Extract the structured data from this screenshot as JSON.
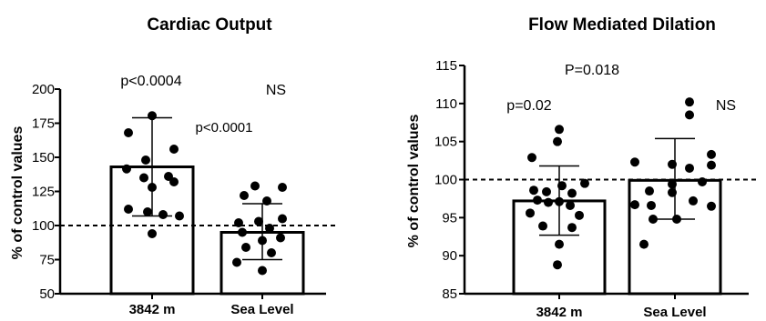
{
  "chart_data": [
    {
      "type": "bar",
      "title": "Cardiac Output",
      "ylabel": "% of control values",
      "xlabel": "",
      "categories": [
        "3842 m",
        "Sea Level"
      ],
      "ylim": [
        50,
        200
      ],
      "yticks": [
        50,
        75,
        100,
        125,
        150,
        175,
        200
      ],
      "reference_line": 100,
      "bars": [
        {
          "category": "3842 m",
          "mean": 143,
          "sd_low": 107,
          "sd_high": 179,
          "points": [
            180.5,
            168,
            156,
            148,
            141.5,
            136,
            135,
            132,
            128,
            112,
            110,
            108,
            107,
            94
          ]
        },
        {
          "category": "Sea Level",
          "mean": 95,
          "sd_low": 75,
          "sd_high": 116,
          "points": [
            129,
            128,
            122,
            118,
            105,
            103,
            102,
            98,
            95,
            91,
            89,
            84,
            80,
            73,
            67
          ]
        }
      ],
      "annotations": [
        "p<0.0004",
        "p<0.0001",
        "NS"
      ]
    },
    {
      "type": "bar",
      "title": "Flow Mediated Dilation",
      "ylabel": "% of control values",
      "xlabel": "",
      "categories": [
        "3842 m",
        "Sea Level"
      ],
      "ylim": [
        85,
        115
      ],
      "yticks": [
        85,
        90,
        95,
        100,
        105,
        110,
        115
      ],
      "reference_line": 100,
      "bars": [
        {
          "category": "3842 m",
          "mean": 97.2,
          "sd_low": 92.7,
          "sd_high": 101.8,
          "points": [
            106.6,
            105,
            102.9,
            99.5,
            99.2,
            98.6,
            98.4,
            98.2,
            97.3,
            97.1,
            97.0,
            96.6,
            95.6,
            95.3,
            93.9,
            93.7,
            91.5,
            88.8
          ]
        },
        {
          "category": "Sea Level",
          "mean": 99.9,
          "sd_low": 94.8,
          "sd_high": 105.4,
          "points": [
            110.2,
            108.5,
            103.3,
            102.3,
            102.0,
            101.9,
            101.5,
            99.7,
            99.4,
            98.5,
            98.3,
            97.2,
            96.7,
            96.6,
            96.5,
            94.8,
            94.8,
            91.5
          ]
        }
      ],
      "annotations": [
        "p=0.02",
        "P=0.018",
        "NS"
      ]
    }
  ]
}
